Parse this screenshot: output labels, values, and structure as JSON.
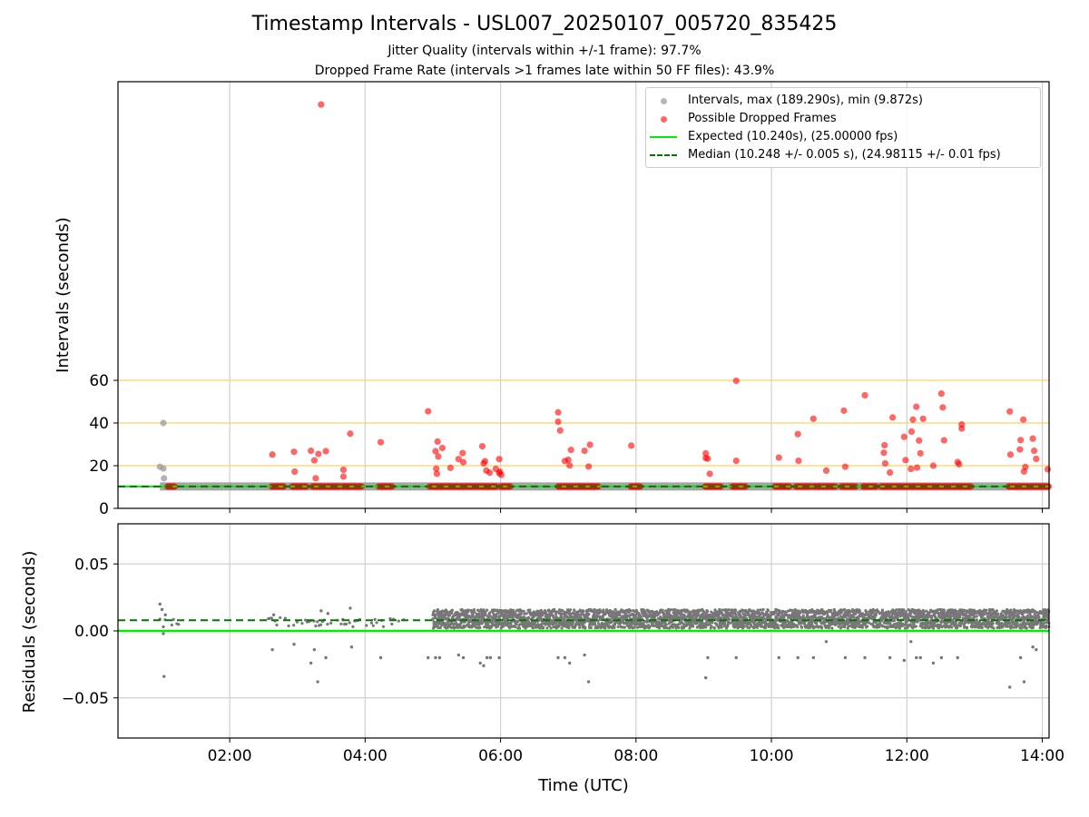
{
  "chart_data": [
    {
      "type": "scatter",
      "title": "Timestamp Intervals - USL007_20250107_005720_835425",
      "subtitle_lines": [
        "Jitter Quality (intervals within +/-1 frame): 97.7%",
        "Dropped Frame Rate (intervals >1 frames late within 50 FF files): 43.9%"
      ],
      "ylabel": "Intervals (seconds)",
      "xlim_hours": [
        0.35,
        14.1
      ],
      "ylim": [
        0,
        200
      ],
      "yticks": [
        0,
        20,
        40,
        60
      ],
      "ytick_labels": [
        "0",
        "20",
        "40",
        "60"
      ],
      "reference_lines_y": [
        20,
        40,
        60
      ],
      "expected_interval": 10.24,
      "median_interval": 10.248,
      "interval_band": {
        "start": 0.97,
        "end": 14.1,
        "value": 10.24
      },
      "series": [
        {
          "name": "Intervals, max (189.290s), min (9.872s)",
          "color": "#999999",
          "points": [
            [
              0.97,
              19.5
            ],
            [
              1.02,
              18.7
            ],
            [
              1.02,
              40.0
            ],
            [
              1.03,
              14.1
            ]
          ]
        },
        {
          "name": "Possible Dropped Frames",
          "color": "#ff0000",
          "points": [
            [
              3.35,
              189.3
            ],
            [
              2.63,
              25.2
            ],
            [
              2.95,
              26.5
            ],
            [
              2.96,
              17.2
            ],
            [
              3.2,
              27.0
            ],
            [
              3.25,
              22.5
            ],
            [
              3.27,
              14.1
            ],
            [
              3.31,
              25.5
            ],
            [
              3.42,
              26.8
            ],
            [
              3.68,
              18.1
            ],
            [
              3.68,
              14.9
            ],
            [
              3.78,
              35.0
            ],
            [
              4.23,
              31.0
            ],
            [
              4.93,
              45.5
            ],
            [
              5.04,
              26.8
            ],
            [
              5.05,
              18.6
            ],
            [
              5.06,
              16.2
            ],
            [
              5.07,
              31.3
            ],
            [
              5.08,
              24.3
            ],
            [
              5.14,
              28.3
            ],
            [
              5.26,
              19.0
            ],
            [
              5.38,
              23.1
            ],
            [
              5.44,
              25.9
            ],
            [
              5.45,
              21.6
            ],
            [
              5.73,
              29.1
            ],
            [
              5.75,
              21.1
            ],
            [
              5.77,
              22.1
            ],
            [
              5.79,
              17.7
            ],
            [
              5.84,
              16.7
            ],
            [
              5.93,
              18.5
            ],
            [
              5.98,
              23.1
            ],
            [
              5.98,
              16.5
            ],
            [
              5.99,
              17.2
            ],
            [
              6.01,
              15.7
            ],
            [
              6.85,
              45.0
            ],
            [
              6.85,
              40.6
            ],
            [
              6.88,
              36.5
            ],
            [
              6.95,
              22.2
            ],
            [
              7.0,
              22.8
            ],
            [
              7.02,
              20.1
            ],
            [
              7.04,
              27.4
            ],
            [
              7.24,
              27.0
            ],
            [
              7.3,
              19.6
            ],
            [
              7.32,
              29.8
            ],
            [
              7.93,
              29.4
            ],
            [
              9.03,
              23.6
            ],
            [
              9.03,
              25.8
            ],
            [
              9.06,
              23.3
            ],
            [
              9.09,
              16.2
            ],
            [
              9.48,
              59.8
            ],
            [
              9.48,
              22.3
            ],
            [
              10.11,
              23.8
            ],
            [
              10.39,
              34.8
            ],
            [
              10.4,
              22.3
            ],
            [
              10.62,
              42.0
            ],
            [
              10.81,
              17.7
            ],
            [
              11.07,
              45.8
            ],
            [
              11.09,
              19.5
            ],
            [
              11.38,
              53.0
            ],
            [
              11.66,
              26.1
            ],
            [
              11.67,
              29.6
            ],
            [
              11.68,
              21.1
            ],
            [
              11.75,
              16.8
            ],
            [
              11.79,
              42.6
            ],
            [
              11.96,
              33.5
            ],
            [
              11.98,
              22.6
            ],
            [
              12.06,
              18.5
            ],
            [
              12.07,
              36.0
            ],
            [
              12.09,
              41.6
            ],
            [
              12.14,
              47.6
            ],
            [
              12.15,
              19.1
            ],
            [
              12.18,
              31.8
            ],
            [
              12.2,
              25.8
            ],
            [
              12.24,
              42.0
            ],
            [
              12.39,
              20.0
            ],
            [
              12.51,
              53.8
            ],
            [
              12.53,
              47.3
            ],
            [
              12.55,
              31.9
            ],
            [
              12.75,
              21.7
            ],
            [
              12.77,
              20.7
            ],
            [
              12.81,
              37.4
            ],
            [
              12.81,
              39.3
            ],
            [
              13.52,
              45.4
            ],
            [
              13.53,
              25.2
            ],
            [
              13.67,
              27.6
            ],
            [
              13.68,
              32.0
            ],
            [
              13.72,
              41.6
            ],
            [
              13.73,
              17.3
            ],
            [
              13.75,
              19.4
            ],
            [
              13.86,
              32.7
            ],
            [
              13.88,
              27.0
            ],
            [
              13.91,
              23.2
            ],
            [
              14.08,
              18.3
            ]
          ]
        }
      ],
      "dropped_frame_runs": [
        [
          1.08,
          1.2
        ],
        [
          2.62,
          2.8
        ],
        [
          2.92,
          3.14
        ],
        [
          3.22,
          3.62
        ],
        [
          3.66,
          3.95
        ],
        [
          4.2,
          4.4
        ],
        [
          4.95,
          5.95
        ],
        [
          6.0,
          6.16
        ],
        [
          6.85,
          7.45
        ],
        [
          7.92,
          8.08
        ],
        [
          9.02,
          9.26
        ],
        [
          9.42,
          9.62
        ],
        [
          10.05,
          10.28
        ],
        [
          10.36,
          10.58
        ],
        [
          10.62,
          10.95
        ],
        [
          11.03,
          11.25
        ],
        [
          11.35,
          11.56
        ],
        [
          11.62,
          12.75
        ],
        [
          12.75,
          12.95
        ],
        [
          13.5,
          14.1
        ]
      ],
      "lines": [
        {
          "name": "Expected (10.240s), (25.00000 fps)",
          "color": "#00ee00",
          "style": "solid"
        },
        {
          "name": "Median (10.248 +/- 0.005 s), (24.98115 +/- 0.01 fps)",
          "color": "#007700",
          "style": "dashed"
        }
      ],
      "legend_placement": "top-right",
      "grid": true
    },
    {
      "type": "scatter",
      "xlabel": "Time (UTC)",
      "ylabel": "Residuals (seconds)",
      "xlim_hours": [
        0.35,
        14.1
      ],
      "xticks_hours": [
        2,
        4,
        6,
        8,
        10,
        12,
        14
      ],
      "xtick_labels": [
        "02:00",
        "04:00",
        "06:00",
        "08:00",
        "10:00",
        "12:00",
        "14:00"
      ],
      "ylim": [
        -0.08,
        0.08
      ],
      "yticks": [
        -0.05,
        0.0,
        0.05
      ],
      "ytick_labels": [
        "−0.05",
        "0.00",
        "0.05"
      ],
      "expected_residual": 0.0,
      "median_residual": 0.008,
      "dense_band": {
        "start": 5.0,
        "end": 14.1,
        "low": 0.002,
        "high": 0.016
      },
      "sparse_band": {
        "start": 0.97,
        "end": 4.6,
        "low": 0.003,
        "high": 0.01
      },
      "series": [
        {
          "name": "Residuals",
          "color": "#777777",
          "points": [
            [
              0.97,
              0.02
            ],
            [
              1.0,
              0.016
            ],
            [
              1.02,
              -0.002
            ],
            [
              1.03,
              -0.034
            ],
            [
              1.05,
              0.012
            ],
            [
              2.63,
              -0.014
            ],
            [
              2.65,
              0.012
            ],
            [
              2.95,
              -0.01
            ],
            [
              3.2,
              -0.024
            ],
            [
              3.25,
              -0.014
            ],
            [
              3.3,
              -0.038
            ],
            [
              3.35,
              0.015
            ],
            [
              3.42,
              -0.02
            ],
            [
              3.45,
              0.013
            ],
            [
              3.78,
              0.017
            ],
            [
              3.8,
              -0.012
            ],
            [
              4.23,
              -0.02
            ],
            [
              4.93,
              -0.02
            ],
            [
              5.04,
              -0.02
            ],
            [
              5.1,
              -0.02
            ],
            [
              5.38,
              -0.018
            ],
            [
              5.45,
              -0.02
            ],
            [
              5.7,
              -0.024
            ],
            [
              5.75,
              -0.026
            ],
            [
              5.8,
              -0.02
            ],
            [
              5.85,
              -0.02
            ],
            [
              5.98,
              -0.02
            ],
            [
              6.85,
              -0.02
            ],
            [
              6.95,
              -0.02
            ],
            [
              7.02,
              -0.024
            ],
            [
              7.24,
              -0.018
            ],
            [
              7.3,
              -0.038
            ],
            [
              9.03,
              -0.035
            ],
            [
              9.06,
              -0.02
            ],
            [
              9.48,
              -0.02
            ],
            [
              10.11,
              -0.02
            ],
            [
              10.39,
              -0.02
            ],
            [
              10.62,
              -0.02
            ],
            [
              10.81,
              -0.008
            ],
            [
              11.09,
              -0.02
            ],
            [
              11.38,
              -0.02
            ],
            [
              11.75,
              -0.02
            ],
            [
              11.96,
              -0.022
            ],
            [
              12.06,
              -0.008
            ],
            [
              12.14,
              -0.02
            ],
            [
              12.2,
              -0.02
            ],
            [
              12.39,
              -0.024
            ],
            [
              12.51,
              -0.02
            ],
            [
              12.75,
              -0.02
            ],
            [
              13.52,
              -0.042
            ],
            [
              13.68,
              -0.02
            ],
            [
              13.73,
              -0.038
            ],
            [
              13.86,
              -0.012
            ],
            [
              13.91,
              -0.014
            ]
          ]
        }
      ],
      "grid": true
    }
  ],
  "legend": {
    "intervals": "Intervals, max (189.290s), min (9.872s)",
    "dropped": "Possible Dropped Frames",
    "expected": "Expected (10.240s), (25.00000 fps)",
    "median": "Median (10.248 +/- 0.005 s), (24.98115 +/- 0.01 fps)"
  },
  "colors": {
    "interval_gray": "#999999",
    "dropped_red": "#ff0000",
    "expected_green": "#00ee00",
    "median_darkgreen": "#007700",
    "threshold_gold": "#ffd060",
    "residual_gray": "#777777",
    "band_gray": "#888888"
  }
}
